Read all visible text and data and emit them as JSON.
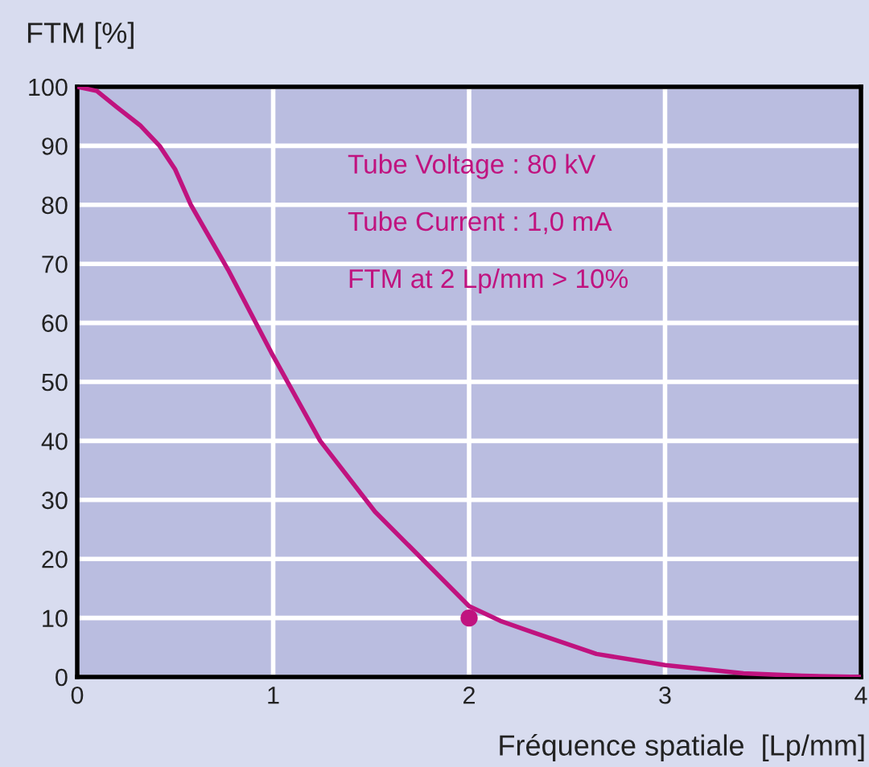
{
  "chart_data": {
    "type": "line",
    "ylabel": "FTM [%]",
    "xlabel": "Fréquence spatiale  [Lp/mm]",
    "annotations": [
      "Tube Voltage : 80 kV",
      "Tube Current : 1,0 mA",
      "FTM at 2 Lp/mm > 10%"
    ],
    "series": [
      {
        "color": "#c0137f",
        "x": [
          0,
          0.1,
          0.2,
          0.32,
          0.42,
          0.5,
          0.58,
          0.77,
          0.99,
          1.24,
          1.52,
          1.79,
          2.0,
          2.16,
          2.33,
          2.65,
          3.0,
          3.4,
          3.7,
          4.0
        ],
        "values": [
          100,
          99.3,
          96.6,
          93.5,
          90,
          86,
          80,
          69,
          55,
          40,
          28,
          19,
          12,
          9.5,
          7.5,
          3.9,
          2,
          0.6,
          0.2,
          0
        ]
      },
      {
        "type": "scatter",
        "color": "#c0137f",
        "x": [
          2
        ],
        "values": [
          10
        ],
        "marker": "circle"
      }
    ],
    "xlim": [
      0,
      4
    ],
    "ylim": [
      0,
      100
    ],
    "xticks": [
      0,
      1,
      2,
      3,
      4
    ],
    "yticks": [
      0,
      10,
      20,
      30,
      40,
      50,
      60,
      70,
      80,
      90,
      100
    ],
    "grid": true,
    "legend": false
  }
}
